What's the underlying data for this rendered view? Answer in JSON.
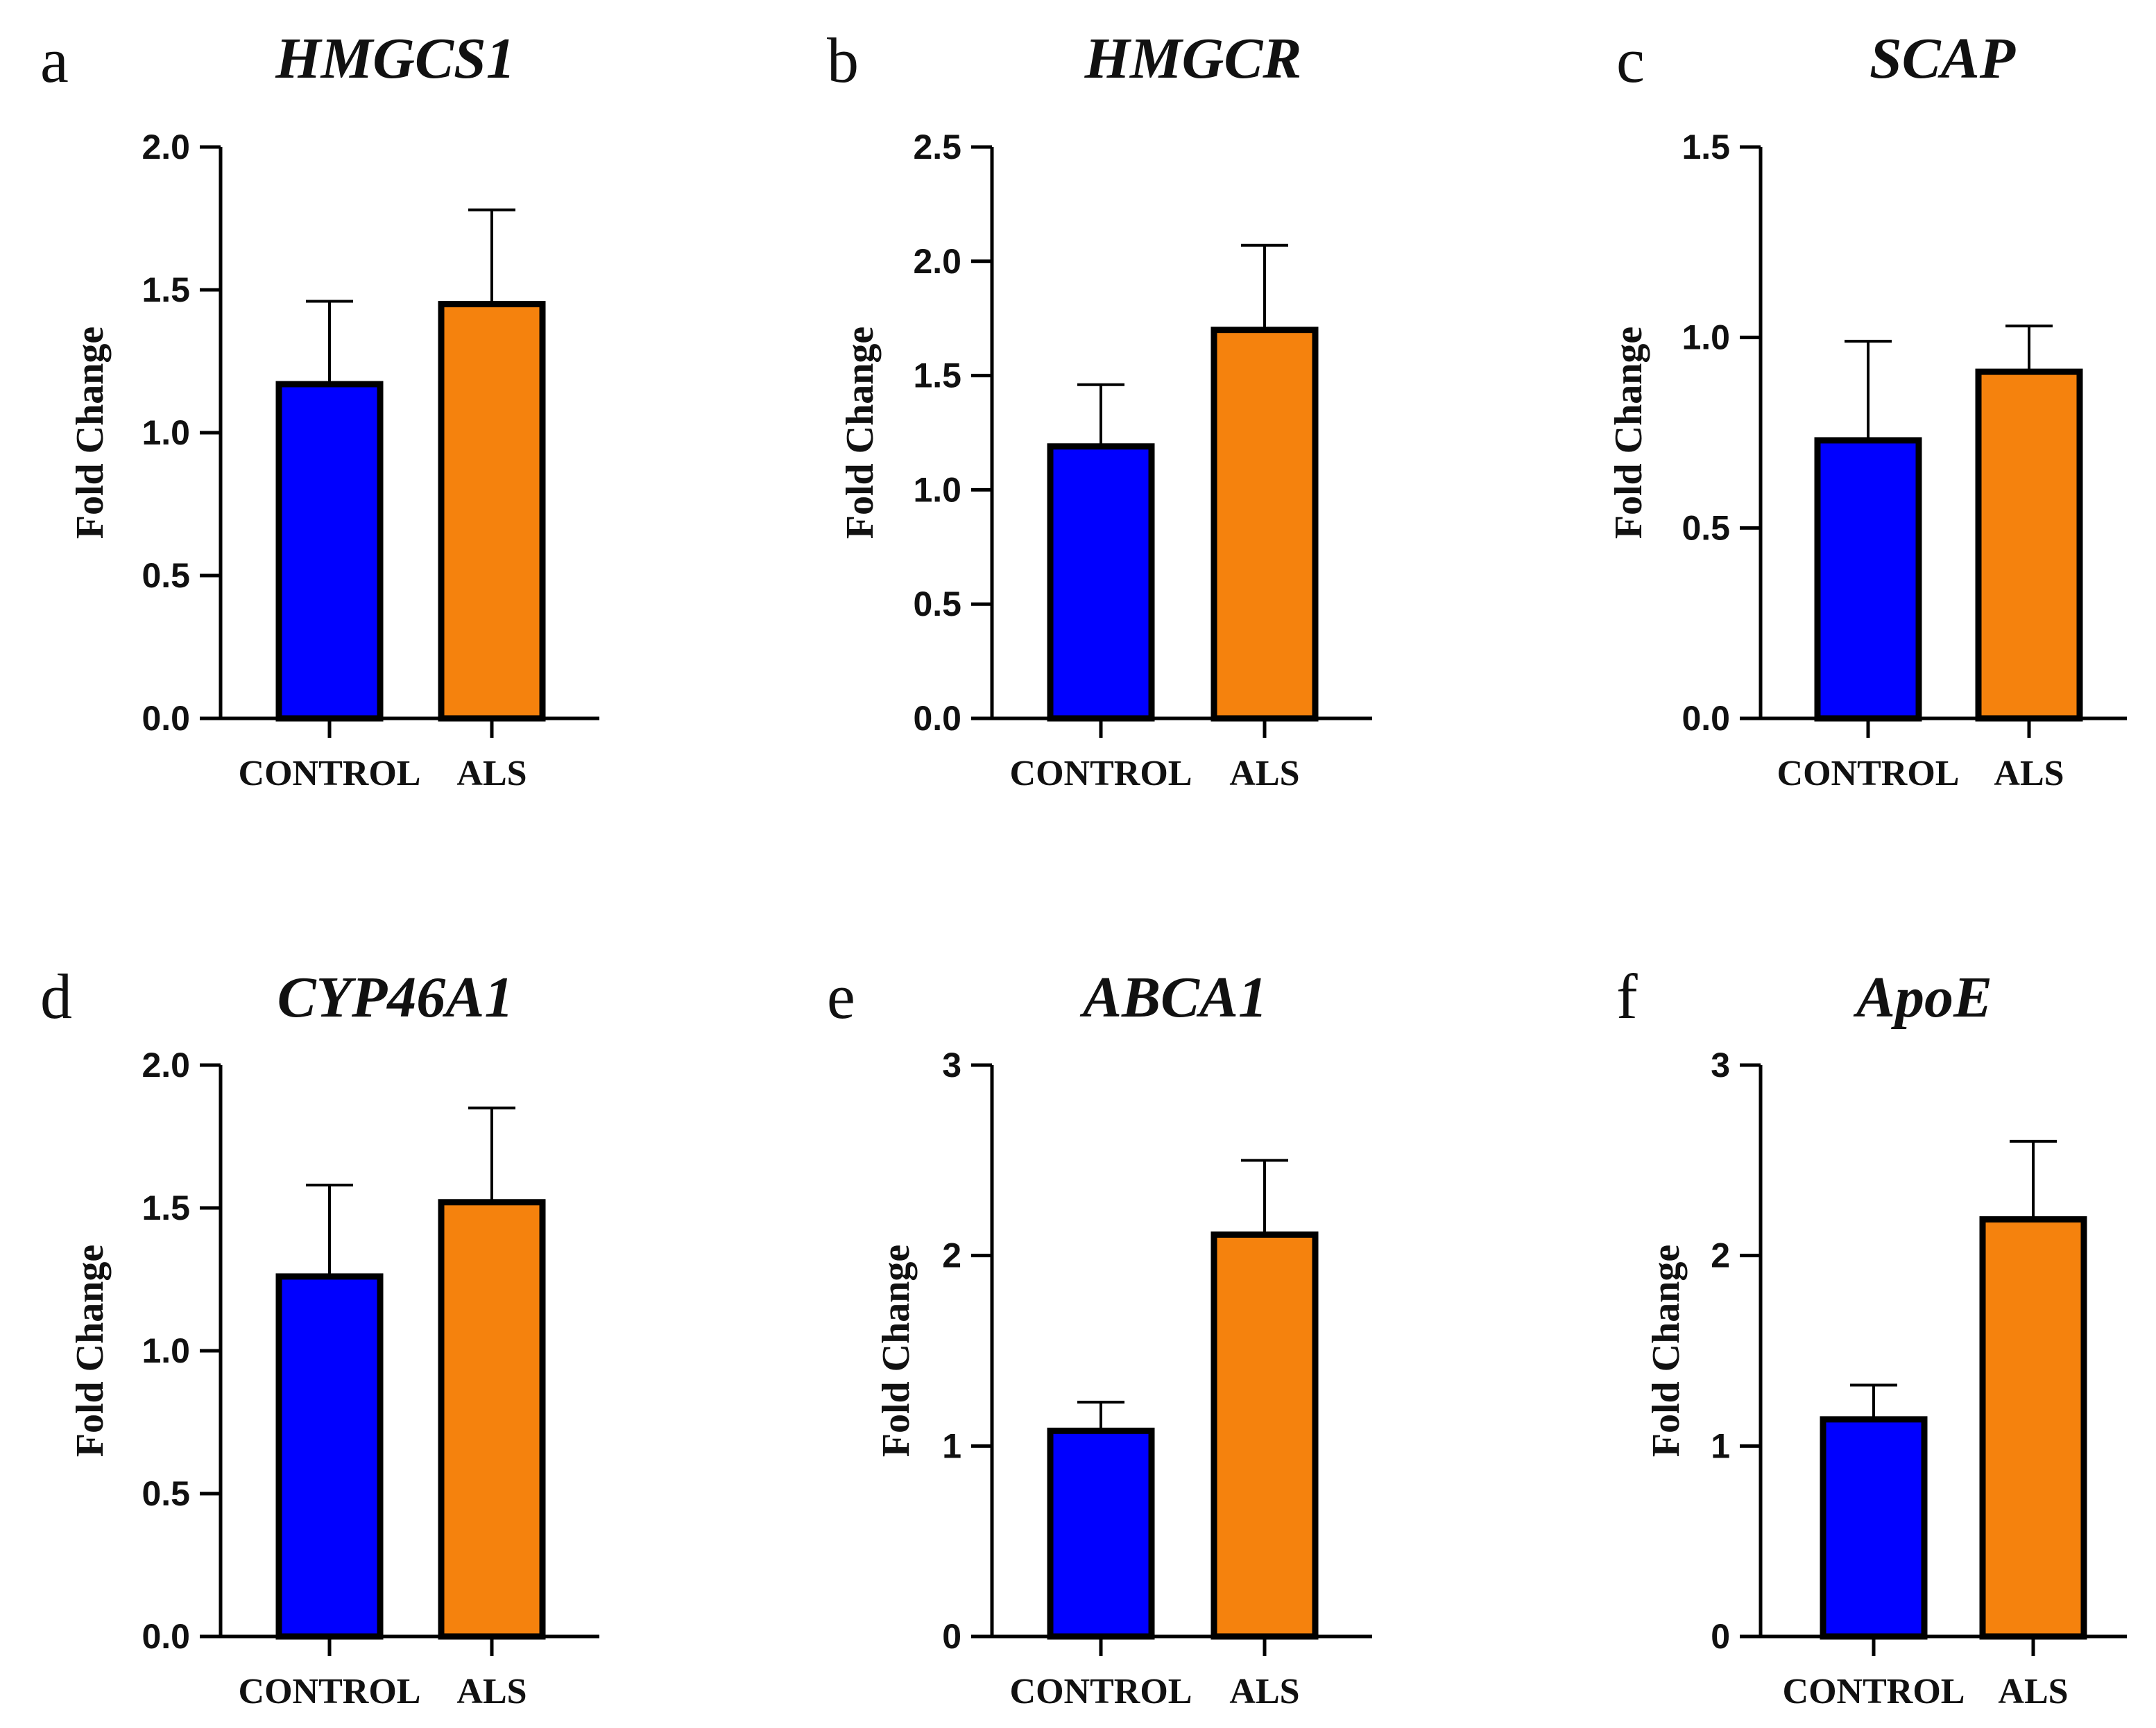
{
  "figure": {
    "description_free": true
  },
  "colors": {
    "control": "#0000ff",
    "als": "#f5820d",
    "stroke": "#000000"
  },
  "chart_data": [
    {
      "type": "bar",
      "panel": "a",
      "title": "HMGCS1",
      "ylabel": "Fold Change",
      "xlabel": "",
      "categories": [
        "CONTROL",
        "ALS"
      ],
      "values": [
        1.17,
        1.45
      ],
      "error_upper": [
        1.46,
        1.78
      ],
      "ylim": [
        0,
        2.0
      ],
      "yticks": [
        0.0,
        0.5,
        1.0,
        1.5,
        2.0
      ],
      "ytick_labels": [
        "0.0",
        "0.5",
        "1.0",
        "1.5",
        "2.0"
      ]
    },
    {
      "type": "bar",
      "panel": "b",
      "title": "HMGCR",
      "ylabel": "Fold Change",
      "xlabel": "",
      "categories": [
        "CONTROL",
        "ALS"
      ],
      "values": [
        1.19,
        1.7
      ],
      "error_upper": [
        1.46,
        2.07
      ],
      "ylim": [
        0,
        2.5
      ],
      "yticks": [
        0.0,
        0.5,
        1.0,
        1.5,
        2.0,
        2.5
      ],
      "ytick_labels": [
        "0.0",
        "0.5",
        "1.0",
        "1.5",
        "2.0",
        "2.5"
      ]
    },
    {
      "type": "bar",
      "panel": "c",
      "title": "SCAP",
      "ylabel": "Fold Change",
      "xlabel": "",
      "categories": [
        "CONTROL",
        "ALS"
      ],
      "values": [
        0.73,
        0.91
      ],
      "error_upper": [
        0.99,
        1.03
      ],
      "ylim": [
        0,
        1.5
      ],
      "yticks": [
        0.0,
        0.5,
        1.0,
        1.5
      ],
      "ytick_labels": [
        "0.0",
        "0.5",
        "1.0",
        "1.5"
      ]
    },
    {
      "type": "bar",
      "panel": "d",
      "title": "CYP46A1",
      "ylabel": "Fold Change",
      "xlabel": "",
      "categories": [
        "CONTROL",
        "ALS"
      ],
      "values": [
        1.26,
        1.52
      ],
      "error_upper": [
        1.58,
        1.85
      ],
      "ylim": [
        0,
        2.0
      ],
      "yticks": [
        0.0,
        0.5,
        1.0,
        1.5,
        2.0
      ],
      "ytick_labels": [
        "0.0",
        "0.5",
        "1.0",
        "1.5",
        "2.0"
      ]
    },
    {
      "type": "bar",
      "panel": "e",
      "title": "ABCA1",
      "ylabel": "Fold Change",
      "xlabel": "",
      "categories": [
        "CONTROL",
        "ALS"
      ],
      "values": [
        1.08,
        2.11
      ],
      "error_upper": [
        1.23,
        2.5
      ],
      "ylim": [
        0,
        3
      ],
      "yticks": [
        0,
        1,
        2,
        3
      ],
      "ytick_labels": [
        "0",
        "1",
        "2",
        "3"
      ]
    },
    {
      "type": "bar",
      "panel": "f",
      "title": "ApoE",
      "ylabel": "Fold Change",
      "xlabel": "",
      "categories": [
        "CONTROL",
        "ALS"
      ],
      "values": [
        1.14,
        2.19
      ],
      "error_upper": [
        1.32,
        2.6
      ],
      "ylim": [
        0,
        3
      ],
      "yticks": [
        0,
        1,
        2,
        3
      ],
      "ytick_labels": [
        "0",
        "1",
        "2",
        "3"
      ]
    }
  ]
}
